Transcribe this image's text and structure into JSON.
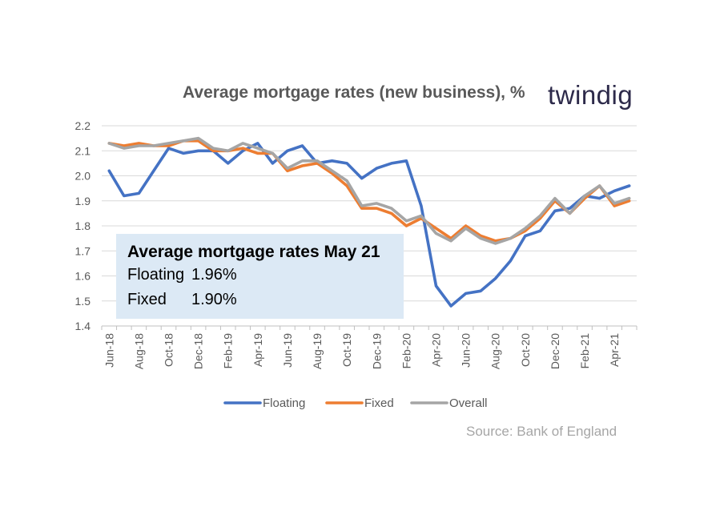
{
  "header": {
    "title": "Average mortgage rates (new business), %",
    "logo_text": "twindig",
    "source": "Source: Bank of England"
  },
  "annotation": {
    "title": "Average mortgage rates May 21",
    "floating_label": "Floating",
    "floating_value": "1.96%",
    "fixed_label": "Fixed",
    "fixed_value": "1.90%"
  },
  "colors": {
    "floating": "#4472c4",
    "fixed": "#ed7d31",
    "overall": "#a5a5a5",
    "gridline": "#d9d9d9",
    "annotation_bg": "#dce9f5",
    "logo": "#2d2a4a"
  },
  "chart_data": {
    "type": "line",
    "title": "Average mortgage rates (new business), %",
    "ylim": [
      1.4,
      2.2
    ],
    "y_ticks": [
      "1.4",
      "1.5",
      "1.6",
      "1.7",
      "1.8",
      "1.9",
      "2.0",
      "2.1",
      "2.2"
    ],
    "grid": true,
    "legend_position": "bottom",
    "x": [
      "Jun-18",
      "Jul-18",
      "Aug-18",
      "Sep-18",
      "Oct-18",
      "Nov-18",
      "Dec-18",
      "Jan-19",
      "Feb-19",
      "Mar-19",
      "Apr-19",
      "May-19",
      "Jun-19",
      "Jul-19",
      "Aug-19",
      "Sep-19",
      "Oct-19",
      "Nov-19",
      "Dec-19",
      "Jan-20",
      "Feb-20",
      "Mar-20",
      "Apr-20",
      "May-20",
      "Jun-20",
      "Jul-20",
      "Aug-20",
      "Sep-20",
      "Oct-20",
      "Nov-20",
      "Dec-20",
      "Jan-21",
      "Feb-21",
      "Mar-21",
      "Apr-21",
      "May-21"
    ],
    "x_tick_labels": [
      "Jun-18",
      "Aug-18",
      "Oct-18",
      "Dec-18",
      "Feb-19",
      "Apr-19",
      "Jun-19",
      "Aug-19",
      "Oct-19",
      "Dec-19",
      "Feb-20",
      "Apr-20",
      "Jun-20",
      "Aug-20",
      "Oct-20",
      "Dec-20",
      "Feb-21",
      "Apr-21"
    ],
    "series": [
      {
        "name": "Floating",
        "color": "#4472c4",
        "values": [
          2.02,
          1.92,
          1.93,
          2.02,
          2.11,
          2.09,
          2.1,
          2.1,
          2.05,
          2.1,
          2.13,
          2.05,
          2.1,
          2.12,
          2.05,
          2.06,
          2.05,
          1.99,
          2.03,
          2.05,
          2.06,
          1.88,
          1.56,
          1.48,
          1.53,
          1.54,
          1.59,
          1.66,
          1.76,
          1.78,
          1.86,
          1.87,
          1.92,
          1.91,
          1.94,
          1.96
        ]
      },
      {
        "name": "Fixed",
        "color": "#ed7d31",
        "values": [
          2.13,
          2.12,
          2.13,
          2.12,
          2.12,
          2.14,
          2.14,
          2.1,
          2.1,
          2.11,
          2.09,
          2.09,
          2.02,
          2.04,
          2.05,
          2.01,
          1.96,
          1.87,
          1.87,
          1.85,
          1.8,
          1.83,
          1.79,
          1.75,
          1.8,
          1.76,
          1.74,
          1.75,
          1.78,
          1.83,
          1.9,
          1.85,
          1.91,
          1.96,
          1.88,
          1.9
        ]
      },
      {
        "name": "Overall",
        "color": "#a5a5a5",
        "values": [
          2.13,
          2.11,
          2.12,
          2.12,
          2.13,
          2.14,
          2.15,
          2.11,
          2.1,
          2.13,
          2.11,
          2.09,
          2.03,
          2.06,
          2.06,
          2.02,
          1.98,
          1.88,
          1.89,
          1.87,
          1.82,
          1.84,
          1.77,
          1.74,
          1.79,
          1.75,
          1.73,
          1.75,
          1.79,
          1.84,
          1.91,
          1.85,
          1.92,
          1.96,
          1.89,
          1.91
        ]
      }
    ]
  }
}
